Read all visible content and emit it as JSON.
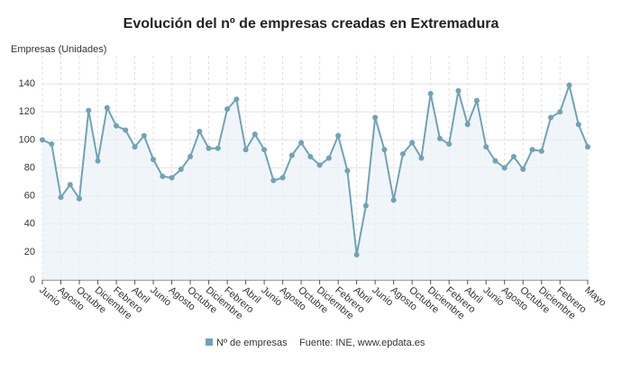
{
  "chart_data": {
    "type": "line",
    "title": "Evolución del nº de empresas creadas en Extremadura",
    "y_label": "Empresas (Unidades)",
    "source": "Fuente: INE, www.epdata.es",
    "categories": [
      "Junio",
      null,
      "Agosto",
      null,
      "Octubre",
      null,
      "Diciembre",
      null,
      "Febrero",
      null,
      "Abril",
      null,
      "Junio",
      null,
      "Agosto",
      null,
      "Octubre",
      null,
      "Diciembre",
      null,
      "Febrero",
      null,
      "Abril",
      null,
      "Junio",
      null,
      "Agosto",
      null,
      "Octubre",
      null,
      "Diciembre",
      null,
      "Febrero",
      null,
      "Abril",
      null,
      "Junio",
      null,
      "Agosto",
      null,
      "Octubre",
      null,
      "Diciembre",
      null,
      "Febrero",
      null,
      "Abril",
      null,
      "Junio",
      null,
      "Agosto",
      null,
      "Octubre",
      null,
      "Diciembre",
      null,
      "Febrero",
      null,
      null,
      "Mayo"
    ],
    "series": [
      {
        "name": "Nº de empresas",
        "color": "#6fa3b6",
        "values": [
          100,
          97,
          59,
          68,
          58,
          121,
          85,
          123,
          110,
          107,
          95,
          103,
          86,
          74,
          73,
          79,
          88,
          106,
          94,
          94,
          122,
          129,
          93,
          104,
          93,
          71,
          73,
          89,
          98,
          88,
          82,
          87,
          103,
          78,
          18,
          53,
          116,
          93,
          57,
          90,
          98,
          87,
          133,
          101,
          97,
          135,
          111,
          128,
          95,
          85,
          80,
          88,
          79,
          93,
          92,
          116,
          120,
          139,
          111,
          95
        ]
      }
    ],
    "ylim": [
      0,
      160
    ],
    "yticks": [
      0,
      20,
      40,
      60,
      80,
      100,
      120,
      140
    ],
    "grid": true
  }
}
